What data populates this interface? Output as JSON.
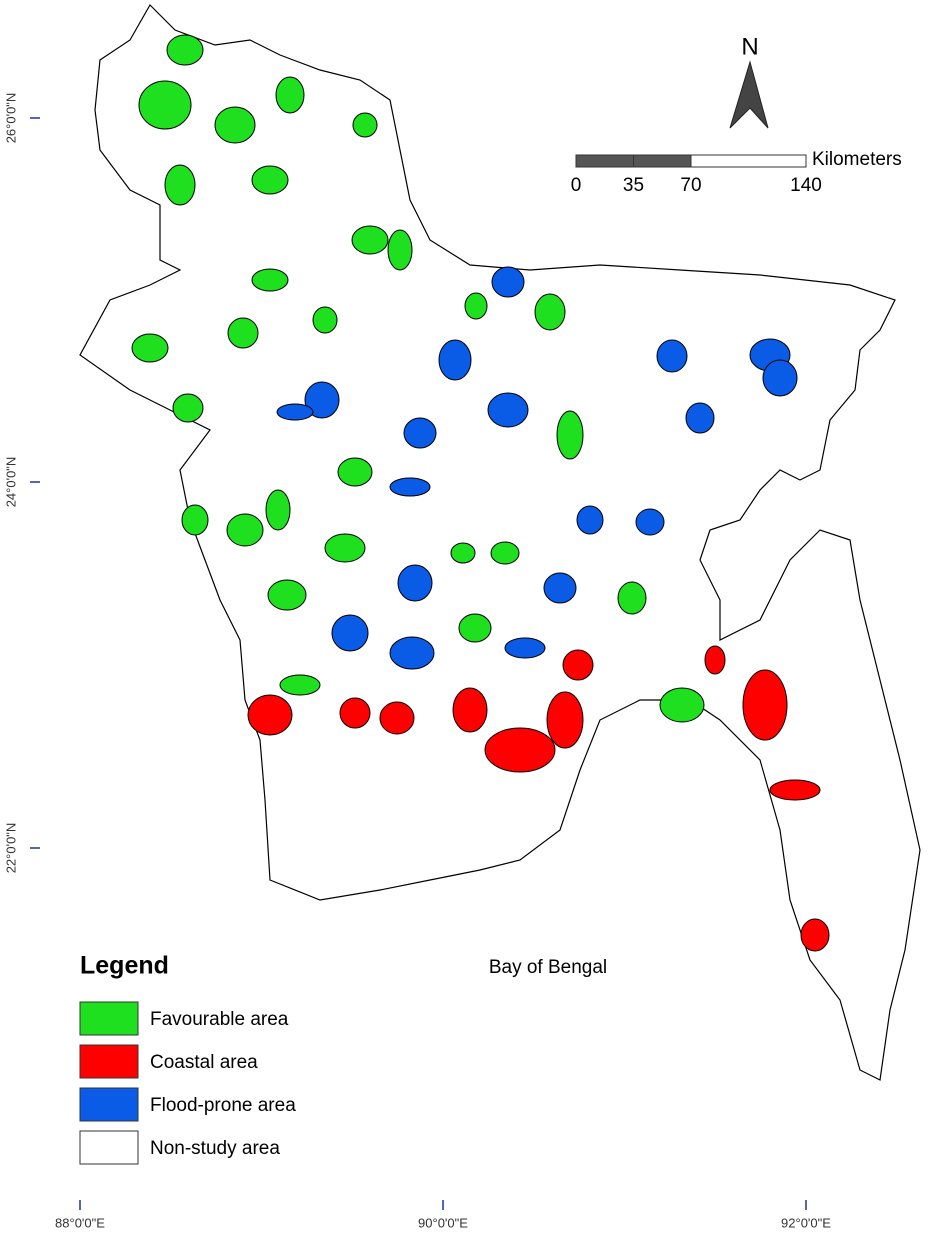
{
  "north_arrow": {
    "label": "N"
  },
  "scale_bar": {
    "unit": "Kilometers",
    "ticks": [
      0,
      35,
      70,
      140
    ]
  },
  "annotation": "Bay of Bengal",
  "latitude_labels": [
    "26°0'0\"N",
    "24°0'0\"N",
    "22°0'0\"N"
  ],
  "longitude_labels": [
    "88°0'0\"E",
    "90°0'0\"E",
    "92°0'0\"E"
  ],
  "legend": {
    "title": "Legend",
    "items": [
      {
        "label": "Favourable area",
        "color": "#1fe01f"
      },
      {
        "label": "Coastal area",
        "color": "#ff0000"
      },
      {
        "label": "Flood-prone area",
        "color": "#0a5ce6"
      },
      {
        "label": "Non-study area",
        "color": "#ffffff"
      }
    ]
  }
}
